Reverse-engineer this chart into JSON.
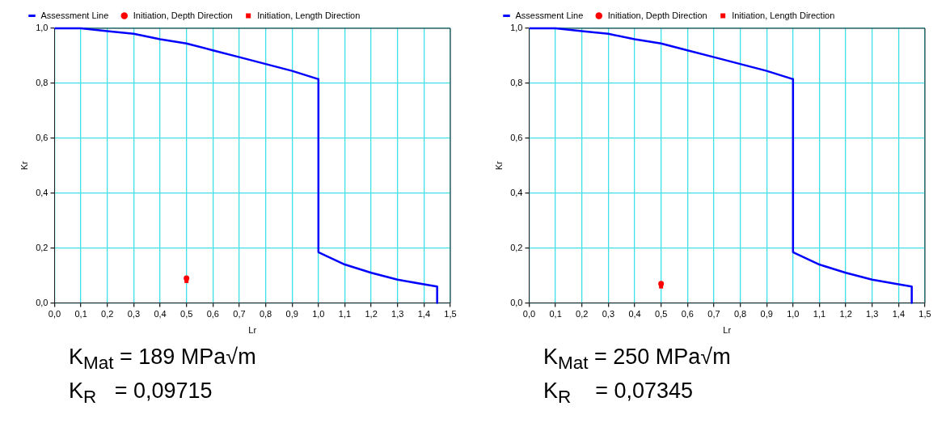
{
  "chart_data": [
    {
      "type": "line",
      "xlabel": "Lr",
      "ylabel": "Kr",
      "xlim": [
        0,
        1.5
      ],
      "ylim": [
        0,
        1
      ],
      "xticks": [
        {
          "value": 0,
          "label": "0,0"
        },
        {
          "value": 0.1,
          "label": "0,1"
        },
        {
          "value": 0.2,
          "label": "0,2"
        },
        {
          "value": 0.3,
          "label": "0,3"
        },
        {
          "value": 0.4,
          "label": "0,4"
        },
        {
          "value": 0.5,
          "label": "0,5"
        },
        {
          "value": 0.6,
          "label": "0,6"
        },
        {
          "value": 0.7,
          "label": "0,7"
        },
        {
          "value": 0.8,
          "label": "0,8"
        },
        {
          "value": 0.9,
          "label": "0,9"
        },
        {
          "value": 1,
          "label": "1,0"
        },
        {
          "value": 1.1,
          "label": "1,1"
        },
        {
          "value": 1.2,
          "label": "1,2"
        },
        {
          "value": 1.3,
          "label": "1,3"
        },
        {
          "value": 1.4,
          "label": "1,4"
        },
        {
          "value": 1.5,
          "label": "1,5"
        }
      ],
      "yticks": [
        {
          "value": 0,
          "label": "0,0"
        },
        {
          "value": 0.2,
          "label": "0,2"
        },
        {
          "value": 0.4,
          "label": "0,4"
        },
        {
          "value": 0.6,
          "label": "0,6"
        },
        {
          "value": 0.8,
          "label": "0,8"
        },
        {
          "value": 1,
          "label": "1,0"
        }
      ],
      "grid": true,
      "legend": "top",
      "line_style": "solid",
      "series": [
        {
          "name": "Assessment Line",
          "marker": "none",
          "color": "#0000ff",
          "x": [
            0,
            0.1,
            0.2,
            0.3,
            0.4,
            0.5,
            0.6,
            0.7,
            0.8,
            0.9,
            1.0,
            1.0,
            1.1,
            1.2,
            1.3,
            1.4,
            1.45,
            1.45
          ],
          "values": [
            1.0,
            1.0,
            0.99,
            0.98,
            0.96,
            0.945,
            0.92,
            0.895,
            0.87,
            0.845,
            0.815,
            0.185,
            0.14,
            0.11,
            0.085,
            0.068,
            0.06,
            0.0
          ]
        },
        {
          "name": "Initiation, Depth Direction",
          "type": "scatter",
          "marker": "circle",
          "color": "#ff0000",
          "x": [
            0.5
          ],
          "values": [
            0.09
          ]
        },
        {
          "name": "Initiation, Length Direction",
          "type": "scatter",
          "marker": "square",
          "color": "#ff0000",
          "x": [
            0.5
          ],
          "values": [
            0.08
          ]
        }
      ],
      "annotations": [
        "K$_{Mat}$ = 189 MPa√m",
        "K$_{R}$   = 0,09715"
      ]
    },
    {
      "type": "line",
      "xlabel": "Lr",
      "ylabel": "Kr",
      "xlim": [
        0,
        1.5
      ],
      "ylim": [
        0,
        1
      ],
      "xticks": [
        {
          "value": 0,
          "label": "0,0"
        },
        {
          "value": 0.1,
          "label": "0,1"
        },
        {
          "value": 0.2,
          "label": "0,2"
        },
        {
          "value": 0.3,
          "label": "0,3"
        },
        {
          "value": 0.4,
          "label": "0,4"
        },
        {
          "value": 0.5,
          "label": "0,5"
        },
        {
          "value": 0.6,
          "label": "0,6"
        },
        {
          "value": 0.7,
          "label": "0,7"
        },
        {
          "value": 0.8,
          "label": "0,8"
        },
        {
          "value": 0.9,
          "label": "0,9"
        },
        {
          "value": 1,
          "label": "1,0"
        },
        {
          "value": 1.1,
          "label": "1,1"
        },
        {
          "value": 1.2,
          "label": "1,2"
        },
        {
          "value": 1.3,
          "label": "1,3"
        },
        {
          "value": 1.4,
          "label": "1,4"
        },
        {
          "value": 1.5,
          "label": "1,5"
        }
      ],
      "yticks": [
        {
          "value": 0,
          "label": "0,0"
        },
        {
          "value": 0.2,
          "label": "0,2"
        },
        {
          "value": 0.4,
          "label": "0,4"
        },
        {
          "value": 0.6,
          "label": "0,6"
        },
        {
          "value": 0.8,
          "label": "0,8"
        },
        {
          "value": 1,
          "label": "1,0"
        }
      ],
      "grid": true,
      "legend": "top",
      "line_style": "solid",
      "series": [
        {
          "name": "Assessment Line",
          "marker": "none",
          "color": "#0000ff",
          "x": [
            0,
            0.1,
            0.2,
            0.3,
            0.4,
            0.5,
            0.6,
            0.7,
            0.8,
            0.9,
            1.0,
            1.0,
            1.1,
            1.2,
            1.3,
            1.4,
            1.45,
            1.45
          ],
          "values": [
            1.0,
            1.0,
            0.99,
            0.98,
            0.96,
            0.945,
            0.92,
            0.895,
            0.87,
            0.845,
            0.815,
            0.185,
            0.14,
            0.11,
            0.085,
            0.068,
            0.06,
            0.0
          ]
        },
        {
          "name": "Initiation, Depth Direction",
          "type": "scatter",
          "marker": "circle",
          "color": "#ff0000",
          "x": [
            0.5
          ],
          "values": [
            0.07
          ]
        },
        {
          "name": "Initiation, Length Direction",
          "type": "scatter",
          "marker": "square",
          "color": "#ff0000",
          "x": [
            0.5
          ],
          "values": [
            0.06
          ]
        }
      ],
      "annotations": [
        "K$_{Mat}$ = 250 MPa√m",
        "K$_{R}$    = 0,07345"
      ]
    }
  ]
}
